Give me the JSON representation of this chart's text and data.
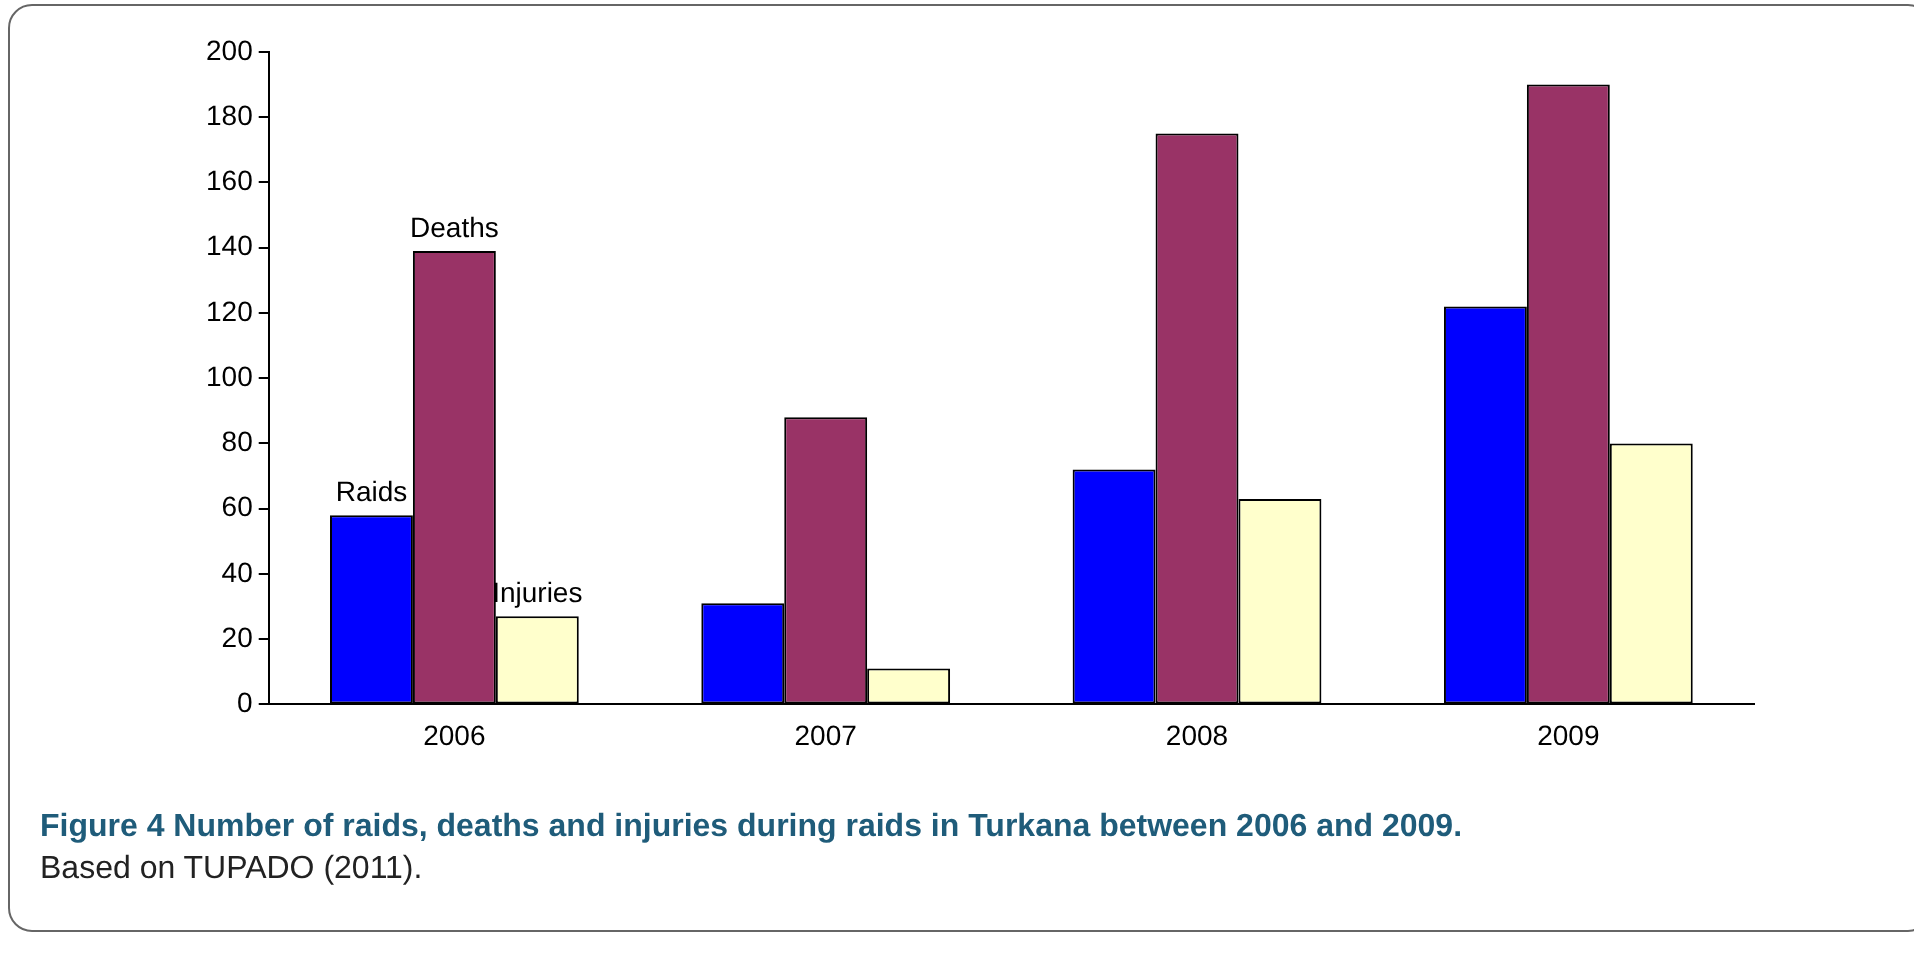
{
  "chart_data": {
    "type": "bar",
    "title": "Figure 4 Number of raids, deaths and injuries during raids in Turkana between 2006 and 2009.",
    "annotations": [
      "Based on TUPADO (2011)."
    ],
    "categories": [
      "2006",
      "2007",
      "2008",
      "2009"
    ],
    "series": [
      {
        "name": "Raids",
        "color": "#0000ff",
        "values": [
          58,
          31,
          72,
          122
        ]
      },
      {
        "name": "Deaths",
        "color": "#993366",
        "values": [
          139,
          88,
          175,
          190
        ]
      },
      {
        "name": "Injuries",
        "color": "#ffffcc",
        "values": [
          27,
          11,
          63,
          80
        ]
      }
    ],
    "ylim": [
      0,
      200
    ],
    "yticks": [
      0,
      20,
      40,
      60,
      80,
      100,
      120,
      140,
      160,
      180,
      200
    ]
  }
}
